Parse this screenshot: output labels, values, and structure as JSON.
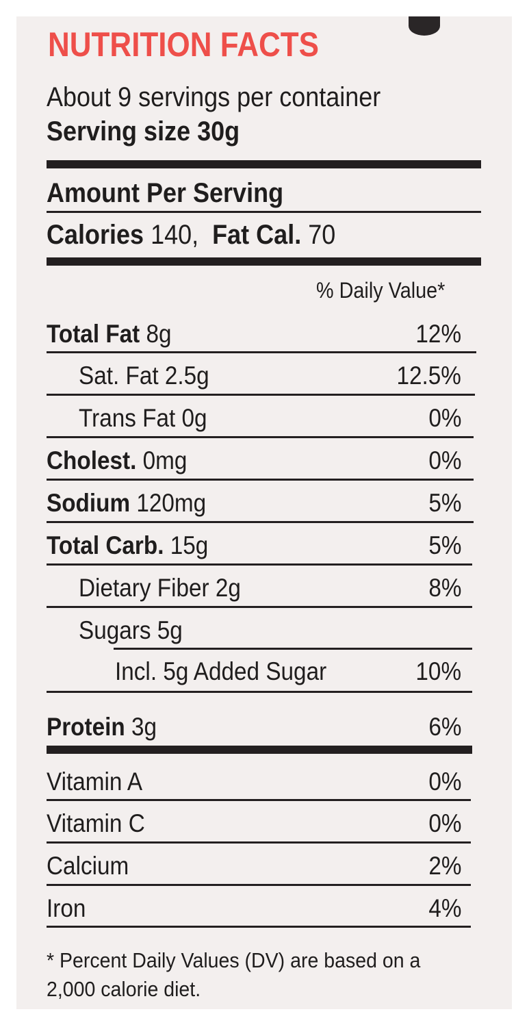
{
  "label": {
    "title": "NUTRITION FACTS",
    "servings_per_container": "About 9 servings per container",
    "serving_size_label": "Serving size",
    "serving_size_value": "30g",
    "amount_per_serving": "Amount Per Serving",
    "calories_label": "Calories",
    "calories_value": "140,",
    "fat_cal_label": "Fat Cal.",
    "fat_cal_value": "70",
    "daily_value_header": "% Daily Value*",
    "nutrients": [
      {
        "name": "Total Fat",
        "amount": "8g",
        "dv": "12%"
      },
      {
        "name": "Sat. Fat",
        "amount": "2.5g",
        "dv": "12.5%"
      },
      {
        "name": "Trans Fat",
        "amount": "0g",
        "dv": "0%"
      },
      {
        "name": "Cholest.",
        "amount": "0mg",
        "dv": "0%"
      },
      {
        "name": "Sodium",
        "amount": "120mg",
        "dv": "5%"
      },
      {
        "name": "Total Carb.",
        "amount": "15g",
        "dv": "5%"
      },
      {
        "name": "Dietary Fiber",
        "amount": "2g",
        "dv": "8%"
      },
      {
        "name": "Sugars",
        "amount": "5g",
        "dv": ""
      },
      {
        "name": "Incl. 5g Added Sugar",
        "amount": "",
        "dv": "10%"
      },
      {
        "name": "Protein",
        "amount": "3g",
        "dv": "6%"
      }
    ],
    "vitamins": [
      {
        "name": "Vitamin A",
        "dv": "0%"
      },
      {
        "name": "Vitamin C",
        "dv": "0%"
      },
      {
        "name": "Calcium",
        "dv": "2%"
      },
      {
        "name": "Iron",
        "dv": "4%"
      }
    ],
    "footnote": "* Percent Daily Values (DV) are based on a 2,000 calorie diet."
  },
  "colors": {
    "title": "#ee4f4a",
    "text": "#1f1d1d",
    "background": "#f3efee"
  }
}
